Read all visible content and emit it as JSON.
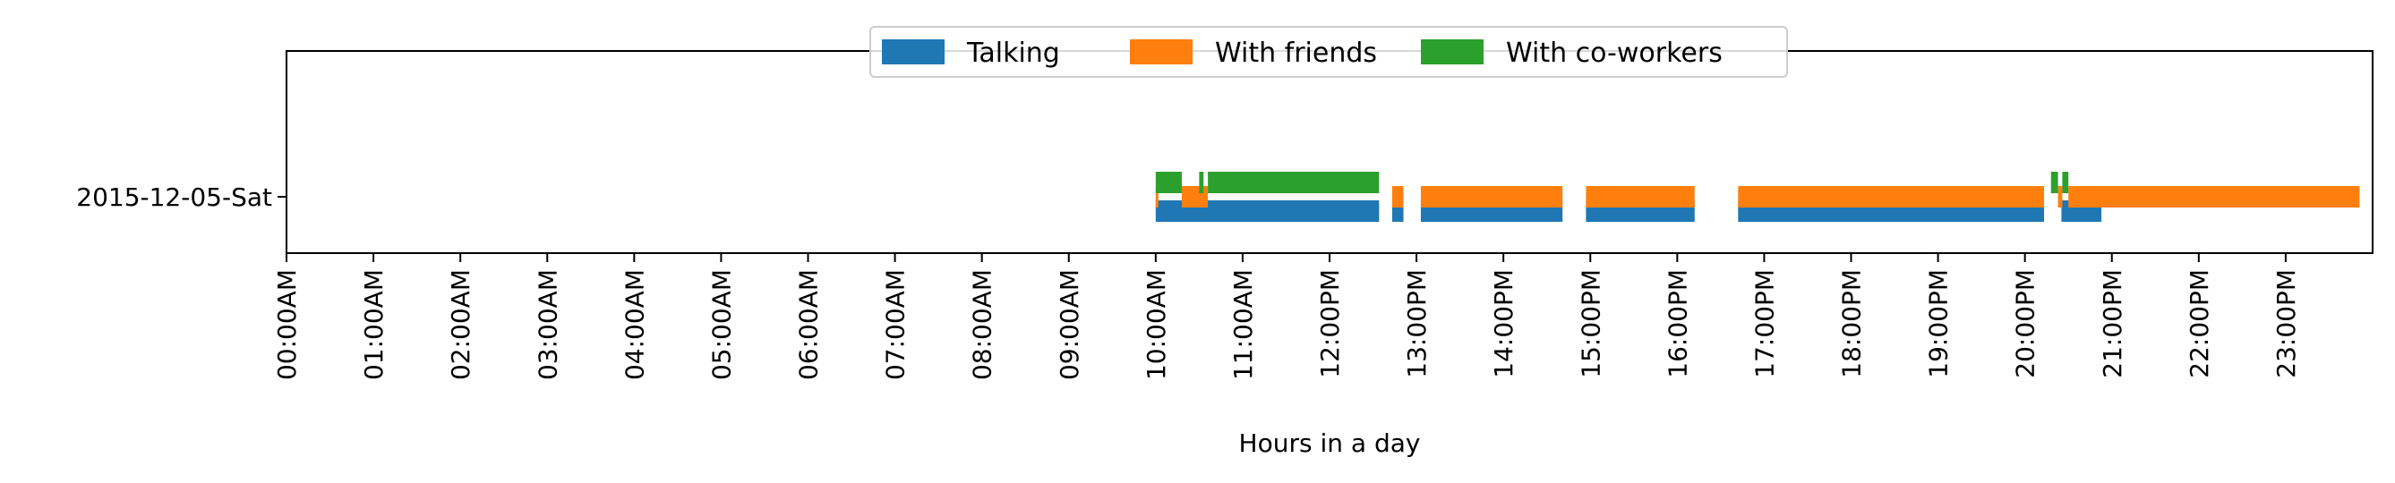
{
  "chart_data": {
    "type": "timeline",
    "xlabel": "Hours in a day",
    "ylabel": "",
    "xlim": [
      0,
      24
    ],
    "x_tick_values": [
      0,
      1,
      2,
      3,
      4,
      5,
      6,
      7,
      8,
      9,
      10,
      11,
      12,
      13,
      14,
      15,
      16,
      17,
      18,
      19,
      20,
      21,
      22,
      23
    ],
    "x_tick_labels": [
      "00:00AM",
      "01:00AM",
      "02:00AM",
      "03:00AM",
      "04:00AM",
      "05:00AM",
      "06:00AM",
      "07:00AM",
      "08:00AM",
      "09:00AM",
      "10:00AM",
      "11:00AM",
      "12:00PM",
      "13:00PM",
      "14:00PM",
      "15:00PM",
      "16:00PM",
      "17:00PM",
      "18:00PM",
      "19:00PM",
      "20:00PM",
      "21:00PM",
      "22:00PM",
      "23:00PM"
    ],
    "categories": [
      "2015-12-05-Sat"
    ],
    "legend_position": "top-center",
    "series": [
      {
        "name": "Talking",
        "color": "#1f77b4",
        "intervals": [
          [
            10.0,
            12.57
          ],
          [
            12.72,
            12.85
          ],
          [
            13.05,
            14.68
          ],
          [
            14.95,
            16.2
          ],
          [
            16.7,
            20.22
          ],
          [
            20.42,
            20.88
          ]
        ]
      },
      {
        "name": "With friends",
        "color": "#ff7f0e",
        "intervals": [
          [
            10.0,
            10.03
          ],
          [
            10.3,
            10.6
          ],
          [
            12.72,
            12.85
          ],
          [
            13.05,
            14.68
          ],
          [
            14.95,
            16.2
          ],
          [
            16.7,
            20.22
          ],
          [
            20.38,
            20.43
          ],
          [
            20.5,
            23.85
          ]
        ]
      },
      {
        "name": "With co-workers",
        "color": "#2ca02c",
        "intervals": [
          [
            10.0,
            10.3
          ],
          [
            10.5,
            10.55
          ],
          [
            10.6,
            12.57
          ],
          [
            20.3,
            20.38
          ],
          [
            20.43,
            20.5
          ]
        ]
      }
    ]
  }
}
